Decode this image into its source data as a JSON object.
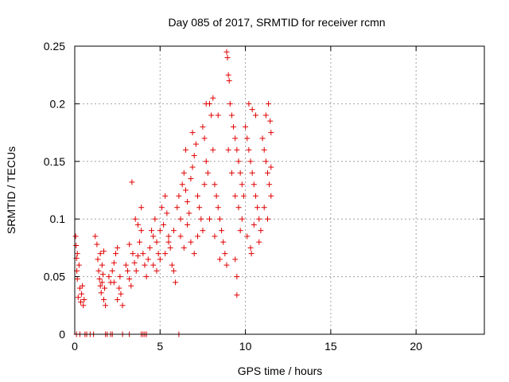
{
  "chart_data": {
    "type": "scatter",
    "title": "Day 085 of 2017, SRMTID for receiver rcmn",
    "xlabel": "GPS time / hours",
    "ylabel": "SRMTID / TECUs",
    "xlim": [
      0,
      24
    ],
    "ylim": [
      0,
      0.25
    ],
    "xticks": [
      0,
      5,
      10,
      15,
      20
    ],
    "xtick_labels": [
      "0",
      "5",
      "10",
      "15",
      "20"
    ],
    "yticks": [
      0,
      0.05,
      0.1,
      0.15,
      0.2,
      0.25
    ],
    "ytick_labels": [
      "0",
      "0.05",
      "0.1",
      "0.15",
      "0.2",
      "0.25"
    ],
    "grid": true,
    "marker": "+",
    "series": [
      {
        "name": "SRMTID",
        "color": "#e00000",
        "points": [
          [
            0.05,
            0.085
          ],
          [
            0.08,
            0.077
          ],
          [
            0.1,
            0.066
          ],
          [
            0.12,
            0.055
          ],
          [
            0.15,
            0.048
          ],
          [
            0.2,
            0.032
          ],
          [
            0.3,
            0.04
          ],
          [
            0.35,
            0.028
          ],
          [
            0.4,
            0.035
          ],
          [
            0.45,
            0.042
          ],
          [
            0.5,
            0.025
          ],
          [
            0.55,
            0.03
          ],
          [
            0.15,
            0.07
          ],
          [
            0.25,
            0.06
          ],
          [
            1.2,
            0.085
          ],
          [
            1.3,
            0.078
          ],
          [
            1.35,
            0.065
          ],
          [
            1.4,
            0.055
          ],
          [
            1.45,
            0.048
          ],
          [
            1.5,
            0.042
          ],
          [
            1.55,
            0.036
          ],
          [
            1.6,
            0.045
          ],
          [
            1.65,
            0.052
          ],
          [
            1.7,
            0.03
          ],
          [
            1.75,
            0.04
          ],
          [
            1.8,
            0.025
          ],
          [
            1.5,
            0.07
          ],
          [
            1.6,
            0.06
          ],
          [
            1.7,
            0.072
          ],
          [
            2.0,
            0.05
          ],
          [
            2.1,
            0.045
          ],
          [
            2.2,
            0.055
          ],
          [
            2.3,
            0.062
          ],
          [
            2.4,
            0.07
          ],
          [
            2.5,
            0.075
          ],
          [
            2.6,
            0.04
          ],
          [
            2.7,
            0.035
          ],
          [
            2.8,
            0.025
          ],
          [
            2.5,
            0.03
          ],
          [
            2.3,
            0.045
          ],
          [
            2.65,
            0.05
          ],
          [
            3.0,
            0.06
          ],
          [
            3.1,
            0.055
          ],
          [
            3.2,
            0.048
          ],
          [
            3.3,
            0.042
          ],
          [
            3.4,
            0.07
          ],
          [
            3.2,
            0.078
          ],
          [
            3.35,
            0.132
          ],
          [
            3.5,
            0.062
          ],
          [
            3.6,
            0.055
          ],
          [
            3.7,
            0.068
          ],
          [
            3.8,
            0.08
          ],
          [
            3.9,
            0.09
          ],
          [
            3.55,
            0.1
          ],
          [
            3.7,
            0.095
          ],
          [
            3.9,
            0.11
          ],
          [
            4.0,
            0.07
          ],
          [
            4.1,
            0.06
          ],
          [
            4.2,
            0.05
          ],
          [
            4.3,
            0.065
          ],
          [
            4.4,
            0.075
          ],
          [
            4.5,
            0.09
          ],
          [
            4.6,
            0.085
          ],
          [
            4.7,
            0.1
          ],
          [
            4.8,
            0.08
          ],
          [
            4.9,
            0.07
          ],
          [
            5.0,
            0.09
          ],
          [
            5.1,
            0.11
          ],
          [
            5.2,
            0.095
          ],
          [
            5.3,
            0.12
          ],
          [
            5.4,
            0.105
          ],
          [
            5.5,
            0.085
          ],
          [
            5.6,
            0.075
          ],
          [
            5.7,
            0.06
          ],
          [
            5.8,
            0.055
          ],
          [
            5.9,
            0.045
          ],
          [
            4.6,
            0.06
          ],
          [
            4.8,
            0.055
          ],
          [
            5.0,
            0.065
          ],
          [
            5.3,
            0.07
          ],
          [
            5.5,
            0.08
          ],
          [
            5.8,
            0.09
          ],
          [
            6.0,
            0.11
          ],
          [
            6.1,
            0.12
          ],
          [
            6.2,
            0.1
          ],
          [
            6.3,
            0.13
          ],
          [
            6.4,
            0.14
          ],
          [
            6.5,
            0.125
          ],
          [
            6.6,
            0.115
          ],
          [
            6.7,
            0.105
          ],
          [
            6.8,
            0.135
          ],
          [
            6.9,
            0.145
          ],
          [
            7.0,
            0.155
          ],
          [
            7.1,
            0.165
          ],
          [
            7.2,
            0.12
          ],
          [
            7.3,
            0.11
          ],
          [
            7.4,
            0.1
          ],
          [
            7.5,
            0.09
          ],
          [
            6.2,
            0.085
          ],
          [
            6.4,
            0.075
          ],
          [
            6.6,
            0.095
          ],
          [
            6.8,
            0.08
          ],
          [
            7.0,
            0.07
          ],
          [
            7.2,
            0.085
          ],
          [
            6.5,
            0.16
          ],
          [
            6.9,
            0.175
          ],
          [
            7.5,
            0.18
          ],
          [
            7.6,
            0.17
          ],
          [
            7.7,
            0.15
          ],
          [
            7.8,
            0.14
          ],
          [
            7.9,
            0.2
          ],
          [
            8.0,
            0.19
          ],
          [
            8.1,
            0.16
          ],
          [
            8.2,
            0.13
          ],
          [
            8.3,
            0.12
          ],
          [
            8.4,
            0.11
          ],
          [
            8.5,
            0.1
          ],
          [
            8.6,
            0.09
          ],
          [
            8.7,
            0.08
          ],
          [
            8.8,
            0.07
          ],
          [
            8.9,
            0.06
          ],
          [
            7.6,
            0.13
          ],
          [
            7.9,
            0.1
          ],
          [
            8.2,
            0.085
          ],
          [
            8.5,
            0.065
          ],
          [
            7.7,
            0.2
          ],
          [
            8.1,
            0.205
          ],
          [
            8.4,
            0.19
          ],
          [
            8.9,
            0.245
          ],
          [
            8.95,
            0.24
          ],
          [
            9.0,
            0.225
          ],
          [
            9.05,
            0.22
          ],
          [
            9.1,
            0.2
          ],
          [
            9.2,
            0.19
          ],
          [
            9.3,
            0.18
          ],
          [
            9.4,
            0.17
          ],
          [
            9.5,
            0.16
          ],
          [
            9.6,
            0.15
          ],
          [
            9.7,
            0.14
          ],
          [
            9.8,
            0.13
          ],
          [
            9.9,
            0.12
          ],
          [
            9.0,
            0.16
          ],
          [
            9.2,
            0.14
          ],
          [
            9.4,
            0.12
          ],
          [
            9.6,
            0.11
          ],
          [
            9.8,
            0.1
          ],
          [
            9.5,
            0.05
          ],
          [
            9.5,
            0.034
          ],
          [
            9.4,
            0.065
          ],
          [
            9.7,
            0.09
          ],
          [
            10.0,
            0.18
          ],
          [
            10.1,
            0.17
          ],
          [
            10.2,
            0.16
          ],
          [
            10.3,
            0.15
          ],
          [
            10.4,
            0.14
          ],
          [
            10.5,
            0.13
          ],
          [
            10.6,
            0.12
          ],
          [
            10.7,
            0.11
          ],
          [
            10.8,
            0.1
          ],
          [
            10.9,
            0.09
          ],
          [
            10.2,
            0.2
          ],
          [
            10.4,
            0.195
          ],
          [
            10.6,
            0.19
          ],
          [
            10.1,
            0.085
          ],
          [
            10.3,
            0.075
          ],
          [
            10.35,
            0.07
          ],
          [
            10.5,
            0.095
          ],
          [
            10.8,
            0.08
          ],
          [
            11.0,
            0.17
          ],
          [
            11.1,
            0.16
          ],
          [
            11.2,
            0.15
          ],
          [
            11.3,
            0.14
          ],
          [
            11.4,
            0.13
          ],
          [
            11.5,
            0.12
          ],
          [
            11.2,
            0.19
          ],
          [
            11.35,
            0.2
          ],
          [
            11.45,
            0.185
          ],
          [
            11.5,
            0.175
          ],
          [
            11.1,
            0.11
          ],
          [
            11.3,
            0.1
          ],
          [
            11.5,
            0.145
          ],
          [
            0.1,
            0.0
          ],
          [
            0.3,
            0.0
          ],
          [
            0.6,
            0.0
          ],
          [
            0.7,
            0.0
          ],
          [
            0.9,
            0.0
          ],
          [
            1.1,
            0.0
          ],
          [
            1.8,
            0.0
          ],
          [
            1.9,
            0.0
          ],
          [
            2.1,
            0.0
          ],
          [
            2.2,
            0.0
          ],
          [
            2.8,
            0.0
          ],
          [
            3.2,
            0.0
          ],
          [
            3.9,
            0.0
          ],
          [
            4.0,
            0.0
          ],
          [
            4.1,
            0.0
          ],
          [
            4.2,
            0.0
          ],
          [
            6.1,
            0.0
          ]
        ]
      }
    ]
  }
}
